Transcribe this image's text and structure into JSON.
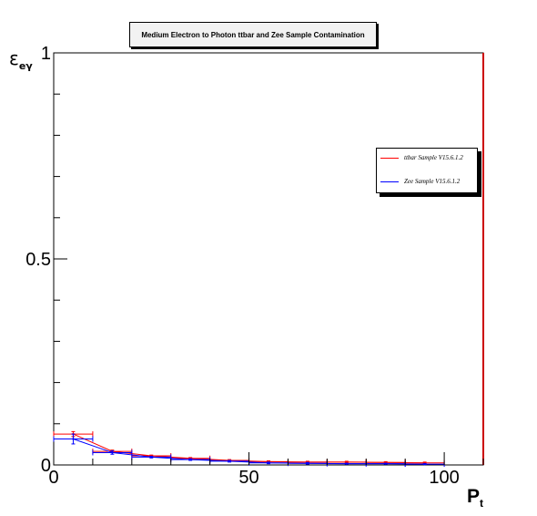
{
  "title": "Medium Electron to Photon ttbar and Zee Sample Contamination",
  "legend": [
    {
      "label": "ttbar Sample V15.6.1.2",
      "color": "#ff0000"
    },
    {
      "label": "Zee Sample V15.6.1.2",
      "color": "#0000ff"
    }
  ],
  "axes": {
    "ylabel_main": "ε",
    "ylabel_sub": "eγ",
    "xlabel_main": "P",
    "xlabel_sub": "t"
  },
  "chart_data": {
    "type": "scatter",
    "title": "Medium Electron to Photon ttbar and Zee Sample Contamination",
    "xlim": [
      0,
      110
    ],
    "ylim": [
      0,
      1
    ],
    "xticks": [
      0,
      50,
      100
    ],
    "yticks": [
      0,
      0.5,
      1
    ],
    "tick_labels_x": [
      "0",
      "50",
      "100"
    ],
    "tick_labels_y": [
      "0",
      "0.5",
      "1"
    ],
    "grid": false,
    "legend_position": "right",
    "series": [
      {
        "name": "ttbar Sample V15.6.1.2",
        "color": "#ff0000",
        "points": [
          {
            "x": 5,
            "xerr": 5,
            "y": 0.075,
            "yerr": 0.006
          },
          {
            "x": 15,
            "xerr": 5,
            "y": 0.033,
            "yerr": 0.003
          },
          {
            "x": 25,
            "xerr": 5,
            "y": 0.022,
            "yerr": 0.002
          },
          {
            "x": 35,
            "xerr": 5,
            "y": 0.016,
            "yerr": 0.002
          },
          {
            "x": 45,
            "xerr": 5,
            "y": 0.011,
            "yerr": 0.002
          },
          {
            "x": 55,
            "xerr": 5,
            "y": 0.008,
            "yerr": 0.002
          },
          {
            "x": 65,
            "xerr": 5,
            "y": 0.007,
            "yerr": 0.002
          },
          {
            "x": 75,
            "xerr": 5,
            "y": 0.007,
            "yerr": 0.002
          },
          {
            "x": 85,
            "xerr": 5,
            "y": 0.006,
            "yerr": 0.002
          },
          {
            "x": 95,
            "xerr": 5,
            "y": 0.005,
            "yerr": 0.002
          }
        ]
      },
      {
        "name": "Zee Sample V15.6.1.2",
        "color": "#0000ff",
        "points": [
          {
            "x": 5,
            "xerr": 5,
            "y": 0.063,
            "yerr": 0.012
          },
          {
            "x": 15,
            "xerr": 5,
            "y": 0.03,
            "yerr": 0.004
          },
          {
            "x": 25,
            "xerr": 5,
            "y": 0.019,
            "yerr": 0.002
          },
          {
            "x": 35,
            "xerr": 5,
            "y": 0.013,
            "yerr": 0.002
          },
          {
            "x": 45,
            "xerr": 5,
            "y": 0.009,
            "yerr": 0.002
          },
          {
            "x": 55,
            "xerr": 5,
            "y": 0.005,
            "yerr": 0.002
          },
          {
            "x": 65,
            "xerr": 5,
            "y": 0.004,
            "yerr": 0.002
          },
          {
            "x": 75,
            "xerr": 5,
            "y": 0.003,
            "yerr": 0.001
          },
          {
            "x": 85,
            "xerr": 5,
            "y": 0.003,
            "yerr": 0.001
          },
          {
            "x": 95,
            "xerr": 5,
            "y": 0.002,
            "yerr": 0.001
          }
        ]
      }
    ]
  }
}
